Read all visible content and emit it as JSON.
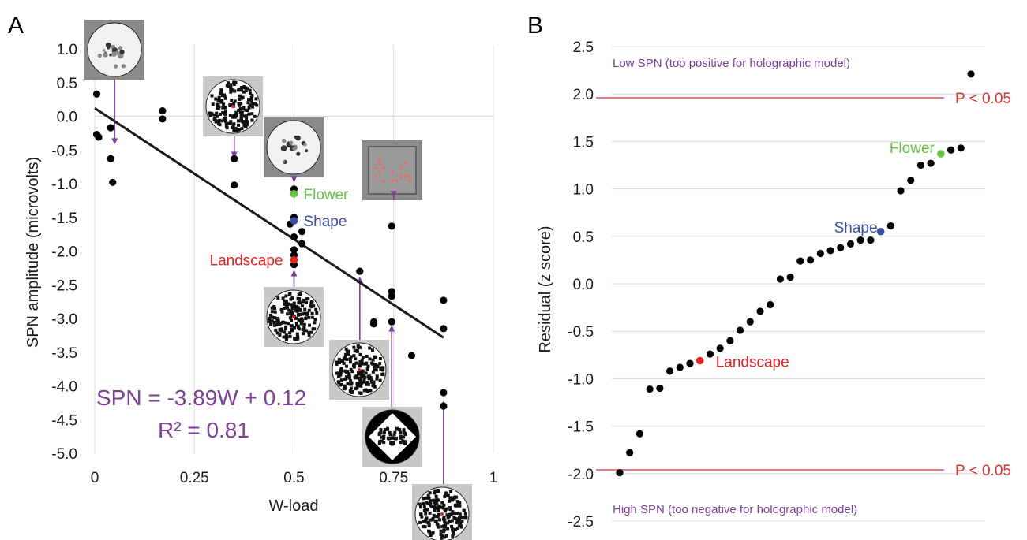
{
  "chart_data": [
    {
      "panel": "A",
      "type": "scatter",
      "xlabel": "W-load",
      "ylabel": "SPN amplitude (microvolts)",
      "xlim": [
        0,
        1
      ],
      "ylim": [
        -5.0,
        1.0
      ],
      "x_ticks": [
        "0",
        "0.25",
        "0.5",
        "0.75",
        "1"
      ],
      "y_ticks": [
        "1.0",
        "0.5",
        "0.0",
        "-0.5",
        "-1.0",
        "-1.5",
        "-2.0",
        "-2.5",
        "-3.0",
        "-3.5",
        "-4.0",
        "-4.5",
        "-5.0"
      ],
      "grid": true,
      "points": [
        [
          0.005,
          0.33
        ],
        [
          0.005,
          -0.27
        ],
        [
          0.01,
          -0.31
        ],
        [
          0.04,
          -0.17
        ],
        [
          0.04,
          -0.63
        ],
        [
          0.045,
          -0.98
        ],
        [
          0.17,
          0.08
        ],
        [
          0.17,
          -0.04
        ],
        [
          0.35,
          -0.63
        ],
        [
          0.35,
          -1.02
        ],
        [
          0.49,
          -1.6
        ],
        [
          0.5,
          -1.08
        ],
        [
          0.5,
          -1.5
        ],
        [
          0.5,
          -1.79
        ],
        [
          0.5,
          -1.98
        ],
        [
          0.5,
          -2.06
        ],
        [
          0.5,
          -2.2
        ],
        [
          0.52,
          -1.71
        ],
        [
          0.52,
          -1.89
        ],
        [
          0.665,
          -2.3
        ],
        [
          0.7,
          -3.05
        ],
        [
          0.7,
          -3.08
        ],
        [
          0.745,
          -1.63
        ],
        [
          0.745,
          -2.6
        ],
        [
          0.745,
          -2.67
        ],
        [
          0.745,
          -3.05
        ],
        [
          0.795,
          -3.55
        ],
        [
          0.875,
          -2.73
        ],
        [
          0.875,
          -3.15
        ],
        [
          0.875,
          -4.1
        ],
        [
          0.875,
          -4.3
        ]
      ],
      "highlighted": [
        {
          "name": "Flower",
          "x": 0.5,
          "y": -1.15,
          "color": "#6abf45"
        },
        {
          "name": "Shape",
          "x": 0.5,
          "y": -1.55,
          "color": "#3b4fa0"
        },
        {
          "name": "Landscape",
          "x": 0.5,
          "y": -2.13,
          "color": "#e02424"
        }
      ],
      "regression": {
        "slope": -3.89,
        "intercept": 0.12,
        "x_range": [
          0,
          0.875
        ]
      },
      "equation": "SPN = -3.89W  + 0.12",
      "r2": "R² = 0.81",
      "thumbnails": [
        {
          "kind": "dots",
          "x": 0.05
        },
        {
          "kind": "noise",
          "x": 0.35
        },
        {
          "kind": "dots",
          "x": 0.5
        },
        {
          "kind": "grid",
          "x": 0.75
        },
        {
          "kind": "noise",
          "x": 0.5
        },
        {
          "kind": "noise",
          "x": 0.665
        },
        {
          "kind": "diamond",
          "x": 0.745
        },
        {
          "kind": "noise",
          "x": 0.875
        }
      ]
    },
    {
      "panel": "B",
      "type": "scatter",
      "ylabel": "Residual (z score)",
      "ylim": [
        -2.5,
        2.5
      ],
      "y_ticks": [
        "2.5",
        "2.0",
        "1.5",
        "1.0",
        "0.5",
        "0.0",
        "-0.5",
        "-1.0",
        "-1.5",
        "-2.0",
        "-2.5"
      ],
      "grid": true,
      "values": [
        -1.99,
        -1.78,
        -1.58,
        -1.11,
        -1.1,
        -0.92,
        -0.88,
        -0.84,
        -0.81,
        -0.74,
        -0.68,
        -0.6,
        -0.49,
        -0.4,
        -0.29,
        -0.22,
        0.05,
        0.07,
        0.24,
        0.25,
        0.32,
        0.35,
        0.38,
        0.42,
        0.46,
        0.46,
        0.55,
        0.61,
        0.98,
        1.09,
        1.25,
        1.27,
        1.37,
        1.41,
        1.43,
        2.21
      ],
      "highlighted": [
        {
          "name": "Landscape",
          "index": 8,
          "color": "#e02424"
        },
        {
          "name": "Shape",
          "index": 26,
          "color": "#3b4fa0"
        },
        {
          "name": "Flower",
          "index": 32,
          "color": "#6abf45"
        }
      ],
      "threshold_lines": [
        1.96,
        -1.96
      ],
      "threshold_label": "P < 0.05",
      "top_note": "Low SPN (too positive for holographic model)",
      "bottom_note": "High SPN (too negative for holographic model)"
    }
  ],
  "colors": {
    "point": "#000000",
    "arrow": "#7b3f98",
    "threshold": "#e03030",
    "grid": "#d9d9d9"
  }
}
